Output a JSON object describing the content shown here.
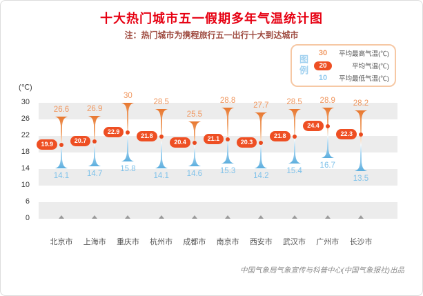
{
  "card": {
    "title": "十大热门城市五一假期多年气温统计图",
    "subtitle": "注：热门城市为携程旅行五一出行十大到达城市",
    "credit": "中国气象局气象宣传与科普中心(中国气象报社)出品"
  },
  "legend": {
    "label": "图例",
    "items": [
      {
        "value": "30",
        "label": "平均最高气温(℃)",
        "style": "high"
      },
      {
        "value": "20",
        "label": "平均气温(℃)",
        "style": "avg"
      },
      {
        "value": "10",
        "label": "平均最低气温(℃)",
        "style": "low"
      }
    ]
  },
  "chart_data": {
    "type": "range-bar",
    "title": "十大热门城市五一假期多年气温统计图",
    "unit_label": "(℃)",
    "ylim": [
      0,
      30
    ],
    "yticks": [
      30,
      26,
      22,
      18,
      14,
      10,
      6,
      0
    ],
    "broken_axis_below": 6,
    "grid": "alternating-gray-bands",
    "legend_position": "top-right",
    "categories": [
      "北京市",
      "上海市",
      "重庆市",
      "杭州市",
      "成都市",
      "南京市",
      "西安市",
      "武汉市",
      "广州市",
      "长沙市"
    ],
    "series": [
      {
        "name": "平均最高气温(℃)",
        "values": [
          26.6,
          26.9,
          30,
          28.5,
          25.5,
          28.8,
          27.7,
          28.5,
          28.9,
          28.2
        ]
      },
      {
        "name": "平均气温(℃)",
        "values": [
          19.9,
          20.7,
          22.9,
          21.8,
          20.4,
          21.1,
          20.3,
          21.8,
          24.4,
          22.3
        ]
      },
      {
        "name": "平均最低气温(℃)",
        "values": [
          14.1,
          14.7,
          15.8,
          14.1,
          14.6,
          15.3,
          14.2,
          15.4,
          16.7,
          13.5
        ]
      }
    ],
    "colors": {
      "high_text": "#f0975f",
      "avg_pill": "#ee4f23",
      "low_text": "#7fc2ea",
      "band_gray": "#ececec",
      "baseline_tick": "#9a9a9a",
      "bar_gradient_top": "#e8772f",
      "bar_gradient_bottom": "#5caede"
    }
  }
}
